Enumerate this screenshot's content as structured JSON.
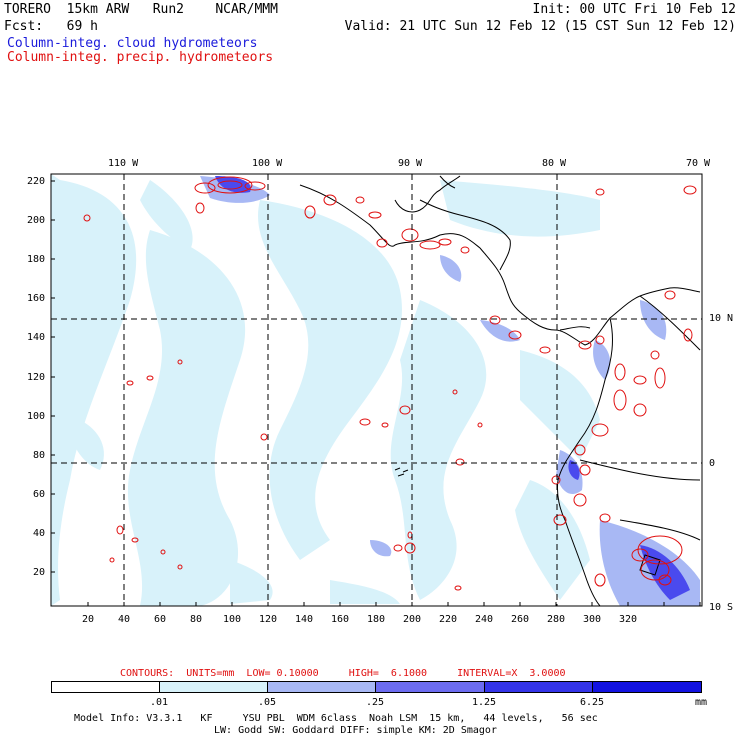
{
  "header": {
    "model": "TORERO  15km ARW   Run2    NCAR/MMM",
    "init": "Init: 00 UTC Fri 10 Feb 12",
    "fcst": "Fcst:   69 h",
    "valid": "Valid: 21 UTC Sun 12 Feb 12 (15 CST Sun 12 Feb 12)",
    "field1": "Column-integ. cloud hydrometeors",
    "field2": "Column-integ. precip. hydrometeors",
    "field1_color": "#1a1adb",
    "field2_color": "#e01010"
  },
  "map": {
    "lon_labels": [
      "110 W",
      "100 W",
      "90 W",
      "80 W",
      "70 W"
    ],
    "lat_labels": [
      "10 N",
      "0",
      "10 S"
    ],
    "x_ticks": [
      "20",
      "40",
      "60",
      "80",
      "100",
      "120",
      "140",
      "160",
      "180",
      "200",
      "220",
      "240",
      "260",
      "280",
      "300",
      "320"
    ],
    "y_ticks": [
      "220",
      "200",
      "180",
      "160",
      "140",
      "120",
      "100",
      "80",
      "60",
      "40",
      "20"
    ]
  },
  "contours": {
    "label": "CONTOURS:  UNITS=mm  LOW= 0.10000     HIGH=  6.1000     INTERVAL=X  3.0000",
    "color": "#e01010"
  },
  "colorbar": {
    "unit": "mm",
    "ticks": [
      ".01",
      ".05",
      ".25",
      "1.25",
      "6.25"
    ],
    "colors": [
      "#ffffff",
      "#d8f2fa",
      "#a8b8f4",
      "#6c6cf0",
      "#3434e8",
      "#1212e0"
    ]
  },
  "footer": {
    "line1": "Model Info: V3.3.1   KF     YSU PBL  WDM 6class  Noah LSM  15 km,   44 levels,   56 sec",
    "line2": "LW: Godd SW: Goddard DIFF: simple KM: 2D Smagor"
  }
}
